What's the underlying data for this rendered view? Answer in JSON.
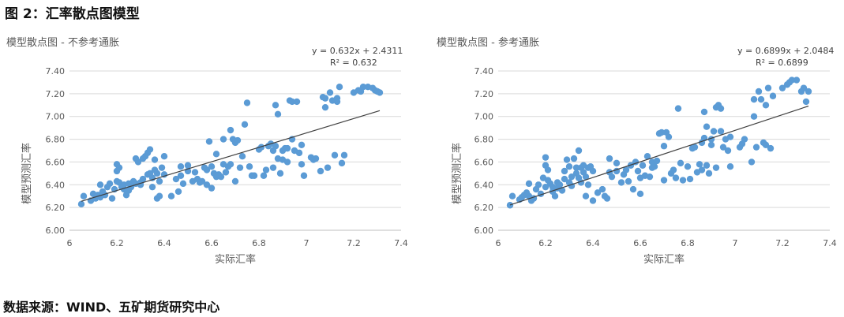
{
  "page": {
    "title": "图 2：汇率散点图模型",
    "source": "数据来源：WIND、五矿期货研究中心"
  },
  "colors": {
    "point": "#5b9bd5",
    "trend": "#404040",
    "grid": "#d9d9d9",
    "axis": "#bfbfbf",
    "text": "#595959"
  },
  "chart_data": [
    {
      "type": "scatter",
      "title": "模型散点图 - 不参考通胀",
      "xlabel": "实际汇率",
      "ylabel": "模型预测汇率",
      "xlim": [
        6,
        7.4
      ],
      "ylim": [
        6.0,
        7.4
      ],
      "x_ticks": [
        "6",
        "6.2",
        "6.4",
        "6.6",
        "6.8",
        "7",
        "7.2",
        "7.4"
      ],
      "y_ticks": [
        "6.00",
        "6.20",
        "6.40",
        "6.60",
        "6.80",
        "7.00",
        "7.20",
        "7.40"
      ],
      "grid": true,
      "trendline": {
        "slope": 0.632,
        "intercept": 2.4311,
        "equation": "y = 0.632x + 2.4311",
        "r2": "R² = 0.632"
      },
      "points": [
        [
          6.05,
          6.23
        ],
        [
          6.06,
          6.3
        ],
        [
          6.09,
          6.26
        ],
        [
          6.1,
          6.32
        ],
        [
          6.11,
          6.28
        ],
        [
          6.12,
          6.31
        ],
        [
          6.13,
          6.4
        ],
        [
          6.13,
          6.29
        ],
        [
          6.14,
          6.34
        ],
        [
          6.15,
          6.31
        ],
        [
          6.16,
          6.38
        ],
        [
          6.17,
          6.41
        ],
        [
          6.18,
          6.28
        ],
        [
          6.19,
          6.36
        ],
        [
          6.2,
          6.43
        ],
        [
          6.2,
          6.58
        ],
        [
          6.2,
          6.52
        ],
        [
          6.21,
          6.55
        ],
        [
          6.21,
          6.42
        ],
        [
          6.22,
          6.38
        ],
        [
          6.23,
          6.36
        ],
        [
          6.23,
          6.4
        ],
        [
          6.24,
          6.31
        ],
        [
          6.25,
          6.41
        ],
        [
          6.25,
          6.35
        ],
        [
          6.26,
          6.38
        ],
        [
          6.27,
          6.43
        ],
        [
          6.28,
          6.41
        ],
        [
          6.28,
          6.63
        ],
        [
          6.29,
          6.6
        ],
        [
          6.3,
          6.42
        ],
        [
          6.3,
          6.4
        ],
        [
          6.31,
          6.45
        ],
        [
          6.31,
          6.63
        ],
        [
          6.32,
          6.65
        ],
        [
          6.33,
          6.49
        ],
        [
          6.33,
          6.68
        ],
        [
          6.34,
          6.71
        ],
        [
          6.34,
          6.5
        ],
        [
          6.35,
          6.38
        ],
        [
          6.35,
          6.46
        ],
        [
          6.36,
          6.62
        ],
        [
          6.36,
          6.53
        ],
        [
          6.37,
          6.5
        ],
        [
          6.37,
          6.28
        ],
        [
          6.38,
          6.3
        ],
        [
          6.38,
          6.43
        ],
        [
          6.39,
          6.55
        ],
        [
          6.4,
          6.65
        ],
        [
          6.4,
          6.49
        ],
        [
          6.43,
          6.3
        ],
        [
          6.45,
          6.45
        ],
        [
          6.46,
          6.34
        ],
        [
          6.47,
          6.48
        ],
        [
          6.47,
          6.56
        ],
        [
          6.48,
          6.41
        ],
        [
          6.5,
          6.52
        ],
        [
          6.5,
          6.57
        ],
        [
          6.52,
          6.43
        ],
        [
          6.53,
          6.51
        ],
        [
          6.54,
          6.45
        ],
        [
          6.55,
          6.42
        ],
        [
          6.56,
          6.43
        ],
        [
          6.57,
          6.55
        ],
        [
          6.58,
          6.4
        ],
        [
          6.58,
          6.53
        ],
        [
          6.59,
          6.78
        ],
        [
          6.6,
          6.37
        ],
        [
          6.6,
          6.56
        ],
        [
          6.61,
          6.5
        ],
        [
          6.62,
          6.67
        ],
        [
          6.62,
          6.47
        ],
        [
          6.63,
          6.49
        ],
        [
          6.64,
          6.47
        ],
        [
          6.65,
          6.58
        ],
        [
          6.65,
          6.8
        ],
        [
          6.66,
          6.51
        ],
        [
          6.67,
          6.56
        ],
        [
          6.68,
          6.58
        ],
        [
          6.68,
          6.88
        ],
        [
          6.69,
          6.8
        ],
        [
          6.7,
          6.77
        ],
        [
          6.7,
          6.43
        ],
        [
          6.71,
          6.79
        ],
        [
          6.72,
          6.55
        ],
        [
          6.73,
          6.65
        ],
        [
          6.74,
          6.93
        ],
        [
          6.75,
          7.12
        ],
        [
          6.76,
          6.56
        ],
        [
          6.77,
          6.48
        ],
        [
          6.78,
          6.48
        ],
        [
          6.8,
          6.71
        ],
        [
          6.81,
          6.73
        ],
        [
          6.82,
          6.48
        ],
        [
          6.83,
          6.53
        ],
        [
          6.84,
          6.74
        ],
        [
          6.85,
          6.76
        ],
        [
          6.86,
          6.7
        ],
        [
          6.86,
          6.55
        ],
        [
          6.87,
          6.74
        ],
        [
          6.87,
          7.1
        ],
        [
          6.88,
          6.63
        ],
        [
          6.88,
          7.02
        ],
        [
          6.89,
          6.5
        ],
        [
          6.9,
          6.7
        ],
        [
          6.9,
          6.62
        ],
        [
          6.91,
          6.72
        ],
        [
          6.92,
          6.6
        ],
        [
          6.92,
          6.72
        ],
        [
          6.93,
          7.14
        ],
        [
          6.94,
          7.13
        ],
        [
          6.94,
          6.8
        ],
        [
          6.95,
          6.7
        ],
        [
          6.96,
          7.13
        ],
        [
          6.97,
          6.68
        ],
        [
          6.98,
          6.58
        ],
        [
          6.98,
          6.75
        ],
        [
          6.99,
          6.48
        ],
        [
          7.02,
          6.64
        ],
        [
          7.03,
          6.62
        ],
        [
          7.04,
          6.63
        ],
        [
          7.06,
          6.52
        ],
        [
          7.07,
          7.17
        ],
        [
          7.08,
          7.16
        ],
        [
          7.08,
          7.08
        ],
        [
          7.09,
          6.55
        ],
        [
          7.1,
          7.21
        ],
        [
          7.11,
          7.14
        ],
        [
          7.12,
          6.66
        ],
        [
          7.13,
          7.16
        ],
        [
          7.13,
          7.13
        ],
        [
          7.14,
          7.26
        ],
        [
          7.15,
          6.59
        ],
        [
          7.16,
          6.66
        ],
        [
          7.2,
          7.21
        ],
        [
          7.22,
          7.23
        ],
        [
          7.23,
          7.22
        ],
        [
          7.24,
          7.26
        ],
        [
          7.26,
          7.26
        ],
        [
          7.28,
          7.25
        ],
        [
          7.29,
          7.23
        ],
        [
          7.3,
          7.22
        ],
        [
          7.31,
          7.21
        ]
      ]
    },
    {
      "type": "scatter",
      "title": "模型散点图 - 参考通胀",
      "xlabel": "实际汇率",
      "ylabel": "模型预测汇率",
      "xlim": [
        6,
        7.4
      ],
      "ylim": [
        6.0,
        7.4
      ],
      "x_ticks": [
        "6",
        "6.2",
        "6.4",
        "6.6",
        "6.8",
        "7",
        "7.2",
        "7.4"
      ],
      "y_ticks": [
        "6.00",
        "6.20",
        "6.40",
        "6.60",
        "6.80",
        "7.00",
        "7.20",
        "7.40"
      ],
      "grid": true,
      "trendline": {
        "slope": 0.6899,
        "intercept": 2.0484,
        "equation": "y = 0.6899x + 2.0484",
        "r2": "R² = 0.6899"
      },
      "points": [
        [
          6.05,
          6.22
        ],
        [
          6.06,
          6.3
        ],
        [
          6.09,
          6.27
        ],
        [
          6.1,
          6.29
        ],
        [
          6.11,
          6.31
        ],
        [
          6.12,
          6.33
        ],
        [
          6.13,
          6.3
        ],
        [
          6.13,
          6.41
        ],
        [
          6.14,
          6.26
        ],
        [
          6.15,
          6.28
        ],
        [
          6.16,
          6.36
        ],
        [
          6.17,
          6.4
        ],
        [
          6.18,
          6.32
        ],
        [
          6.19,
          6.46
        ],
        [
          6.2,
          6.38
        ],
        [
          6.2,
          6.57
        ],
        [
          6.2,
          6.64
        ],
        [
          6.21,
          6.53
        ],
        [
          6.21,
          6.44
        ],
        [
          6.22,
          6.41
        ],
        [
          6.23,
          6.38
        ],
        [
          6.23,
          6.34
        ],
        [
          6.24,
          6.3
        ],
        [
          6.25,
          6.42
        ],
        [
          6.25,
          6.37
        ],
        [
          6.26,
          6.4
        ],
        [
          6.27,
          6.35
        ],
        [
          6.28,
          6.45
        ],
        [
          6.28,
          6.52
        ],
        [
          6.29,
          6.62
        ],
        [
          6.3,
          6.56
        ],
        [
          6.3,
          6.42
        ],
        [
          6.31,
          6.47
        ],
        [
          6.31,
          6.39
        ],
        [
          6.32,
          6.63
        ],
        [
          6.33,
          6.55
        ],
        [
          6.33,
          6.5
        ],
        [
          6.34,
          6.7
        ],
        [
          6.34,
          6.46
        ],
        [
          6.35,
          6.42
        ],
        [
          6.35,
          6.55
        ],
        [
          6.36,
          6.51
        ],
        [
          6.36,
          6.57
        ],
        [
          6.37,
          6.3
        ],
        [
          6.37,
          6.47
        ],
        [
          6.38,
          6.4
        ],
        [
          6.38,
          6.55
        ],
        [
          6.39,
          6.56
        ],
        [
          6.4,
          6.26
        ],
        [
          6.4,
          6.52
        ],
        [
          6.42,
          6.33
        ],
        [
          6.44,
          6.36
        ],
        [
          6.45,
          6.3
        ],
        [
          6.46,
          6.28
        ],
        [
          6.47,
          6.51
        ],
        [
          6.47,
          6.63
        ],
        [
          6.48,
          6.47
        ],
        [
          6.5,
          6.59
        ],
        [
          6.5,
          6.52
        ],
        [
          6.52,
          6.42
        ],
        [
          6.53,
          6.49
        ],
        [
          6.54,
          6.53
        ],
        [
          6.55,
          6.43
        ],
        [
          6.56,
          6.57
        ],
        [
          6.57,
          6.36
        ],
        [
          6.58,
          6.6
        ],
        [
          6.59,
          6.52
        ],
        [
          6.6,
          6.32
        ],
        [
          6.6,
          6.46
        ],
        [
          6.61,
          6.57
        ],
        [
          6.62,
          6.48
        ],
        [
          6.63,
          6.65
        ],
        [
          6.64,
          6.47
        ],
        [
          6.65,
          6.55
        ],
        [
          6.65,
          6.6
        ],
        [
          6.66,
          6.56
        ],
        [
          6.67,
          6.61
        ],
        [
          6.68,
          6.85
        ],
        [
          6.69,
          6.86
        ],
        [
          6.7,
          6.74
        ],
        [
          6.7,
          6.44
        ],
        [
          6.71,
          6.86
        ],
        [
          6.72,
          6.82
        ],
        [
          6.73,
          6.5
        ],
        [
          6.74,
          6.53
        ],
        [
          6.75,
          6.46
        ],
        [
          6.76,
          7.07
        ],
        [
          6.77,
          6.59
        ],
        [
          6.78,
          6.44
        ],
        [
          6.8,
          6.56
        ],
        [
          6.81,
          6.45
        ],
        [
          6.82,
          6.72
        ],
        [
          6.83,
          6.73
        ],
        [
          6.84,
          6.51
        ],
        [
          6.85,
          6.58
        ],
        [
          6.86,
          6.77
        ],
        [
          6.86,
          6.53
        ],
        [
          6.87,
          6.81
        ],
        [
          6.87,
          7.04
        ],
        [
          6.88,
          6.57
        ],
        [
          6.88,
          6.91
        ],
        [
          6.89,
          6.5
        ],
        [
          6.9,
          6.75
        ],
        [
          6.9,
          6.8
        ],
        [
          6.91,
          6.87
        ],
        [
          6.92,
          6.55
        ],
        [
          6.92,
          7.08
        ],
        [
          6.93,
          7.1
        ],
        [
          6.94,
          6.87
        ],
        [
          6.94,
          7.07
        ],
        [
          6.95,
          6.73
        ],
        [
          6.96,
          6.8
        ],
        [
          6.97,
          6.7
        ],
        [
          6.98,
          6.56
        ],
        [
          6.98,
          6.82
        ],
        [
          7.02,
          6.73
        ],
        [
          7.03,
          6.76
        ],
        [
          7.04,
          6.8
        ],
        [
          7.07,
          6.6
        ],
        [
          7.08,
          7.15
        ],
        [
          7.08,
          7.0
        ],
        [
          7.09,
          6.73
        ],
        [
          7.1,
          7.22
        ],
        [
          7.11,
          7.15
        ],
        [
          7.12,
          6.77
        ],
        [
          7.13,
          6.75
        ],
        [
          7.13,
          7.1
        ],
        [
          7.14,
          7.25
        ],
        [
          7.15,
          6.72
        ],
        [
          7.16,
          7.18
        ],
        [
          7.2,
          7.25
        ],
        [
          7.22,
          7.28
        ],
        [
          7.23,
          7.3
        ],
        [
          7.24,
          7.32
        ],
        [
          7.26,
          7.32
        ],
        [
          7.28,
          7.22
        ],
        [
          7.29,
          7.25
        ],
        [
          7.3,
          7.13
        ],
        [
          7.31,
          7.22
        ]
      ]
    }
  ]
}
